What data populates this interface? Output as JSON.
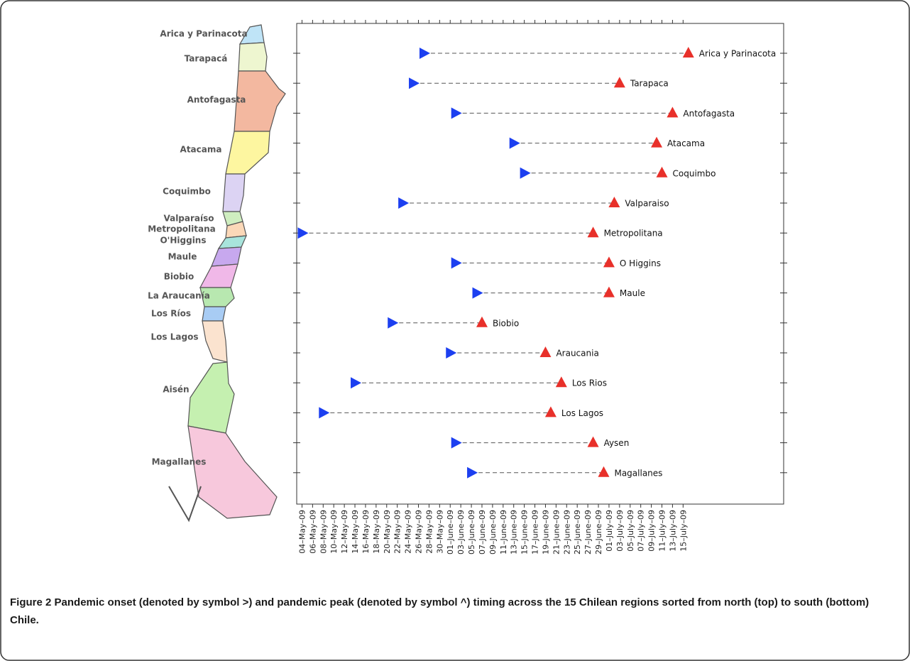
{
  "map": {
    "labels": [
      "Arica y Parinacota",
      "Tarapacá",
      "Antofagasta",
      "Atacama",
      "Coquimbo",
      "Valparaíso",
      "Metropolitana",
      "O'Higgins",
      "Maule",
      "Biobio",
      "La Araucanía",
      "Los Ríos",
      "Los Lagos",
      "Aisén",
      "Magallanes"
    ]
  },
  "chart_data": {
    "type": "dumbbell",
    "categories": [
      "Arica y Parinacota",
      "Tarapaca",
      "Antofagasta",
      "Atacama",
      "Coquimbo",
      "Valparaiso",
      "Metropolitana",
      "O Higgins",
      "Maule",
      "Biobio",
      "Araucania",
      "Los Rios",
      "Los Lagos",
      "Aysen",
      "Magallanes"
    ],
    "series": [
      {
        "color": "#1c3ff0",
        "values": [
          "2009-05-27",
          "2009-05-25",
          "2009-06-02",
          "2009-06-13",
          "2009-06-15",
          "2009-05-23",
          "2009-05-04",
          "2009-06-02",
          "2009-06-06",
          "2009-05-21",
          "2009-06-01",
          "2009-05-14",
          "2009-05-08",
          "2009-06-02",
          "2009-06-05"
        ]
      },
      {
        "color": "#e8302a",
        "values": [
          "2009-07-16",
          "2009-07-03",
          "2009-07-13",
          "2009-07-10",
          "2009-07-11",
          "2009-07-02",
          "2009-06-28",
          "2009-07-01",
          "2009-07-01",
          "2009-06-07",
          "2009-06-19",
          "2009-06-22",
          "2009-06-20",
          "2009-06-28",
          "2009-06-30"
        ]
      }
    ],
    "xlim": [
      "2009-05-03",
      "2009-08-03"
    ],
    "xticks": [
      {
        "value": "2009-05-04",
        "label": "04–May–09"
      },
      {
        "value": "2009-05-06",
        "label": "06–May–09"
      },
      {
        "value": "2009-05-08",
        "label": "08–May–09"
      },
      {
        "value": "2009-05-10",
        "label": "10–May–09"
      },
      {
        "value": "2009-05-12",
        "label": "12–May–09"
      },
      {
        "value": "2009-05-14",
        "label": "14–May–09"
      },
      {
        "value": "2009-05-16",
        "label": "16–May–09"
      },
      {
        "value": "2009-05-18",
        "label": "18–May–09"
      },
      {
        "value": "2009-05-20",
        "label": "20–May–09"
      },
      {
        "value": "2009-05-22",
        "label": "22–May–09"
      },
      {
        "value": "2009-05-24",
        "label": "24–May–09"
      },
      {
        "value": "2009-05-26",
        "label": "26–May–09"
      },
      {
        "value": "2009-05-28",
        "label": "28–May–09"
      },
      {
        "value": "2009-05-30",
        "label": "30–May–09"
      },
      {
        "value": "2009-06-01",
        "label": "01–June–09"
      },
      {
        "value": "2009-06-03",
        "label": "03–June–09"
      },
      {
        "value": "2009-06-05",
        "label": "05–June–09"
      },
      {
        "value": "2009-06-07",
        "label": "07–June–09"
      },
      {
        "value": "2009-06-09",
        "label": "09–June–09"
      },
      {
        "value": "2009-06-11",
        "label": "11–June–09"
      },
      {
        "value": "2009-06-13",
        "label": "13–June–09"
      },
      {
        "value": "2009-06-15",
        "label": "15–June–09"
      },
      {
        "value": "2009-06-17",
        "label": "17–June–09"
      },
      {
        "value": "2009-06-19",
        "label": "19–June–09"
      },
      {
        "value": "2009-06-21",
        "label": "21–June–09"
      },
      {
        "value": "2009-06-23",
        "label": "23–June–09"
      },
      {
        "value": "2009-06-25",
        "label": "25–June–09"
      },
      {
        "value": "2009-06-27",
        "label": "27–June–09"
      },
      {
        "value": "2009-06-29",
        "label": "29–June–09"
      },
      {
        "value": "2009-07-01",
        "label": "01–July–09"
      },
      {
        "value": "2009-07-03",
        "label": "03–July–09"
      },
      {
        "value": "2009-07-05",
        "label": "05–July–09"
      },
      {
        "value": "2009-07-07",
        "label": "07–July–09"
      },
      {
        "value": "2009-07-09",
        "label": "09–July–09"
      },
      {
        "value": "2009-07-11",
        "label": "11–July–09"
      },
      {
        "value": "2009-07-13",
        "label": "13–July–09"
      },
      {
        "value": "2009-07-15",
        "label": "15–July–09"
      }
    ]
  },
  "caption": {
    "label": "Figure 2",
    "text": "Pandemic onset (denoted by symbol >) and pandemic peak (denoted by symbol ^) timing across the 15 Chilean regions sorted from north (top) to south (bottom) Chile."
  }
}
